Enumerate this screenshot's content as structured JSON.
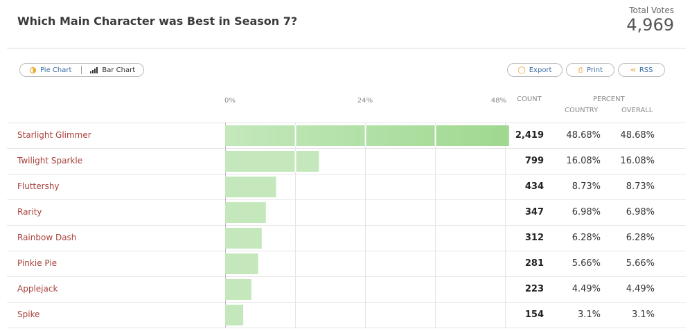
{
  "header": {
    "title": "Which Main Character was Best in Season 7?",
    "votes_label": "Total Votes",
    "votes_value": "4,969"
  },
  "toolbar": {
    "pie_label": "Pie Chart",
    "bar_label": "Bar Chart",
    "export_label": "Export",
    "print_label": "Print",
    "rss_label": "RSS"
  },
  "columns": {
    "count": "COUNT",
    "percent": "PERCENT",
    "country": "COUNTRY",
    "overall": "OVERALL"
  },
  "colors": {
    "bar_fill": "#c4e8bc",
    "bar_fill_top": "#9fd890",
    "label": "#a8403a"
  },
  "chart_data": {
    "type": "bar",
    "orientation": "horizontal",
    "categories": [
      "Starlight Glimmer",
      "Twilight Sparkle",
      "Fluttershy",
      "Rarity",
      "Rainbow Dash",
      "Pinkie Pie",
      "Applejack",
      "Spike"
    ],
    "values": [
      48.68,
      16.08,
      8.73,
      6.98,
      6.28,
      5.66,
      4.49,
      3.1
    ],
    "counts": [
      "2,419",
      "799",
      "434",
      "347",
      "312",
      "281",
      "223",
      "154"
    ],
    "percent_country": [
      "48.68%",
      "16.08%",
      "8.73%",
      "6.98%",
      "6.28%",
      "5.66%",
      "4.49%",
      "3.1%"
    ],
    "percent_overall": [
      "48.68%",
      "16.08%",
      "8.73%",
      "6.98%",
      "6.28%",
      "5.66%",
      "4.49%",
      "3.1%"
    ],
    "xlim": [
      0,
      48
    ],
    "ticks": [
      "0%",
      "24%",
      "48%"
    ],
    "grid": true
  }
}
